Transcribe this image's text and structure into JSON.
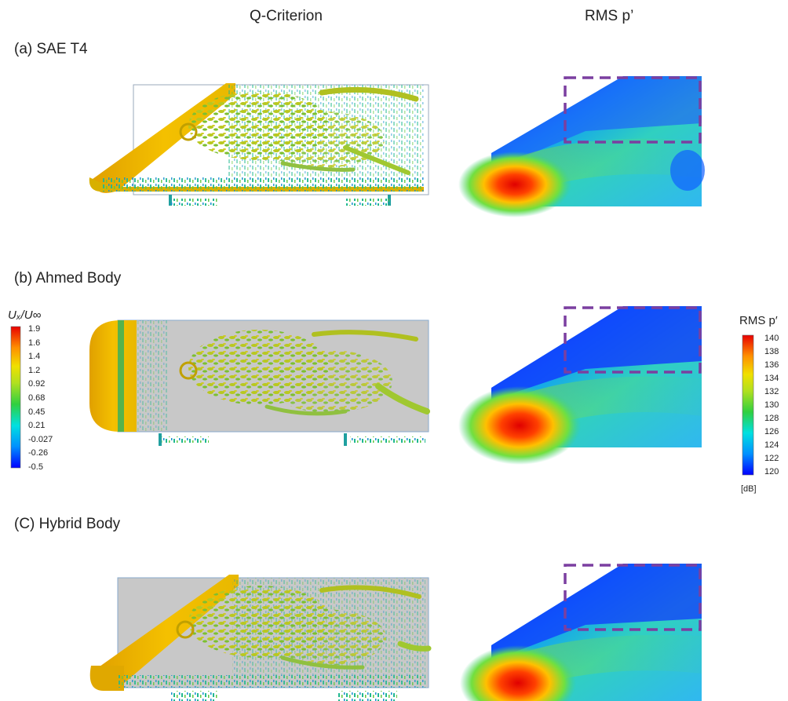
{
  "columns": [
    "Q-Criterion",
    "RMS p’"
  ],
  "rows": [
    {
      "label": "(a) SAE T4",
      "shape": "slant"
    },
    {
      "label": "(b) Ahmed Body",
      "shape": "rounded"
    },
    {
      "label": "(C) Hybrid Body",
      "shape": "slant"
    }
  ],
  "velocity_colorbar": {
    "title": "Uₓ/U∞",
    "ticks": [
      "1.9",
      "1.6",
      "1.4",
      "1.2",
      "0.92",
      "0.68",
      "0.45",
      "0.21",
      "-0.027",
      "-0.26",
      "-0.5"
    ]
  },
  "pressure_colorbar": {
    "title": "RMS p′",
    "ticks": [
      "140",
      "138",
      "136",
      "134",
      "132",
      "130",
      "128",
      "126",
      "124",
      "122",
      "120"
    ],
    "unit": "[dB]"
  },
  "colors": {
    "dashed_box": "#7b3fa0",
    "colormap": [
      "#0000ff",
      "#00a0ff",
      "#00e0e0",
      "#30d040",
      "#c0e020",
      "#f0e000",
      "#ff9000",
      "#ff2000",
      "#e00000"
    ]
  }
}
